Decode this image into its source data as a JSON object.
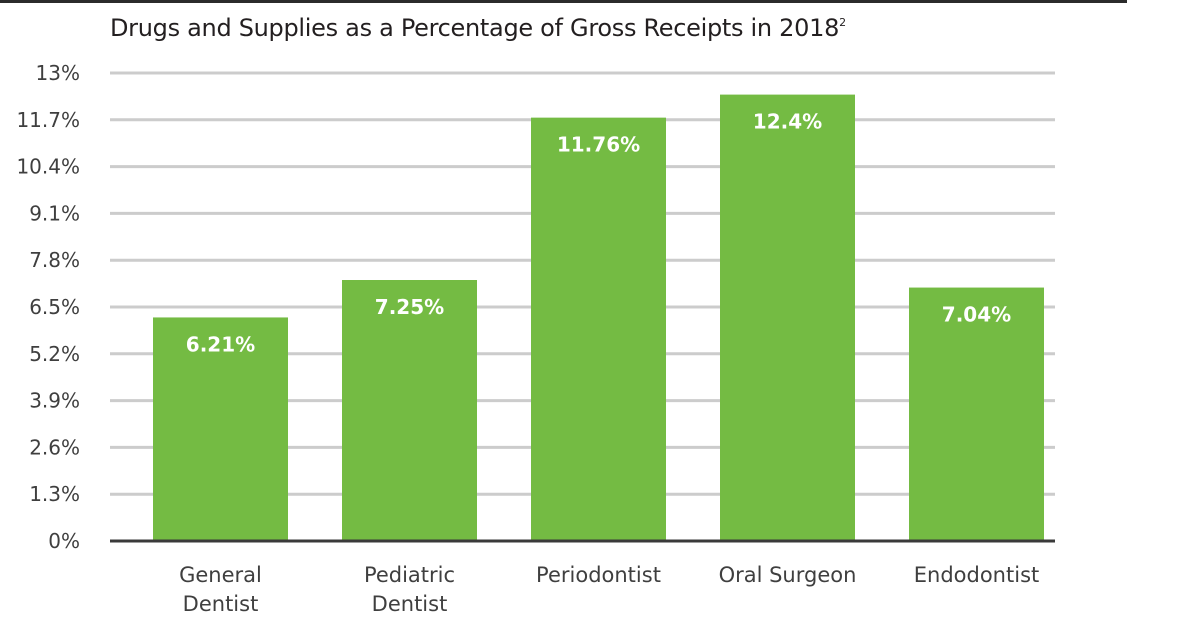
{
  "chart_data": {
    "type": "bar",
    "title": "Drugs and Supplies as a Percentage of Gross Receipts in 2018",
    "title_footnote": "2",
    "xlabel": "",
    "ylabel": "",
    "categories": [
      [
        "General",
        "Dentist"
      ],
      [
        "Pediatric",
        "Dentist"
      ],
      [
        "Periodontist"
      ],
      [
        "Oral Surgeon"
      ],
      [
        "Endodontist"
      ]
    ],
    "values": [
      6.21,
      7.25,
      11.76,
      12.4,
      7.04
    ],
    "data_labels": [
      "6.21%",
      "7.25%",
      "11.76%",
      "12.4%",
      "7.04%"
    ],
    "ylim": [
      0,
      13
    ],
    "yticks": [
      0,
      1.3,
      2.6,
      3.9,
      5.2,
      6.5,
      7.8,
      9.1,
      10.4,
      11.7,
      13
    ],
    "ytick_labels": [
      "0%",
      "1.3%",
      "2.6%",
      "3.9%",
      "5.2%",
      "6.5%",
      "7.8%",
      "9.1%",
      "10.4%",
      "11.7%",
      "13%"
    ],
    "grid": true,
    "legend": "none",
    "colors": {
      "bar": "#74bb43",
      "grid": "#cccccc",
      "axis": "#3a3a3a",
      "label": "#ffffff"
    }
  }
}
